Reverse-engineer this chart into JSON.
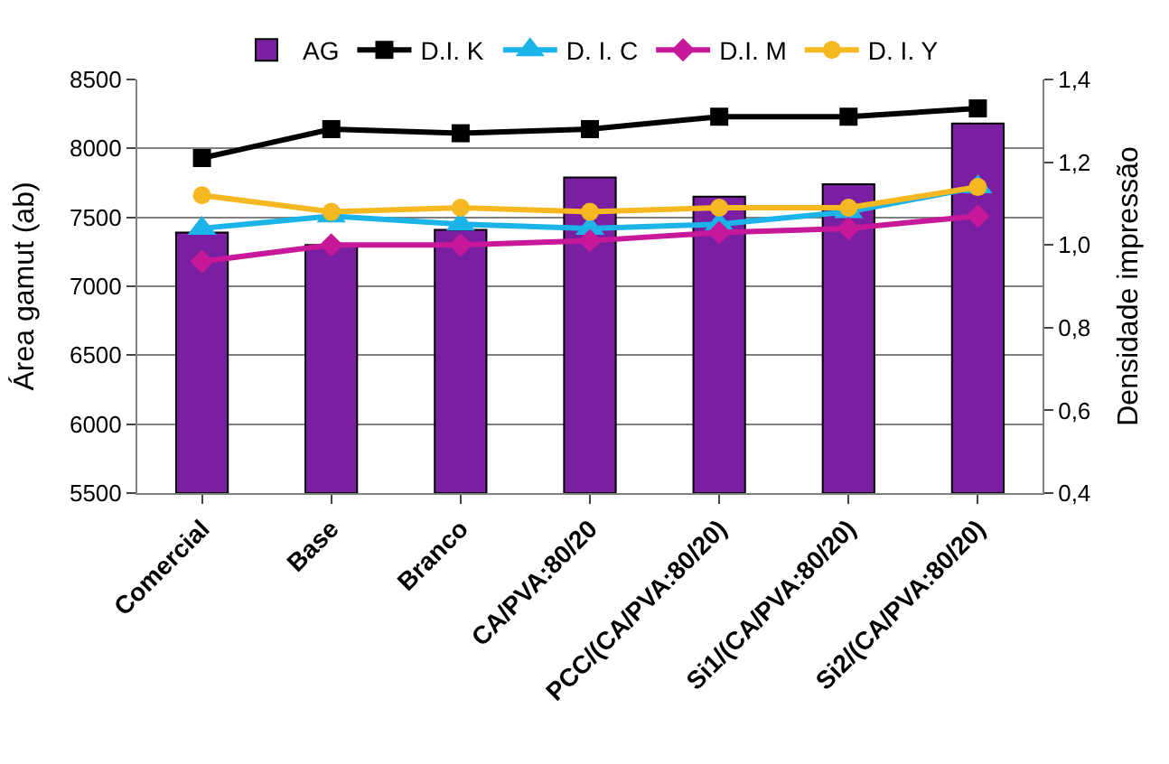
{
  "chart_data": {
    "type": "bar",
    "ylabel": "Área gamut (ab)",
    "y2label": "Densidade impressão",
    "categories": [
      "Comercial",
      "Base",
      "Branco",
      "CA/PVA:80/20",
      "PCC/(CA/PVA:80/20)",
      "Si1/(CA/PVA:80/20)",
      "Si2/(CA/PVA:80/20)"
    ],
    "series": [
      {
        "name": "AG",
        "color": "#7a1fa2",
        "values": [
          7390,
          7300,
          7410,
          7790,
          7650,
          7740,
          8180
        ]
      },
      {
        "name": "D.I. K",
        "type": "line",
        "axis": "y2",
        "color": "#000000",
        "marker": "square",
        "values": [
          1.21,
          1.28,
          1.27,
          1.28,
          1.31,
          1.31,
          1.33
        ]
      },
      {
        "name": "D. I. C",
        "type": "line",
        "axis": "y2",
        "color": "#1cb4e8",
        "marker": "triangle",
        "values": [
          1.04,
          1.07,
          1.05,
          1.04,
          1.05,
          1.08,
          1.14
        ]
      },
      {
        "name": "D.I. M",
        "type": "line",
        "axis": "y2",
        "color": "#c8189a",
        "marker": "diamond",
        "values": [
          0.96,
          1.0,
          1.0,
          1.01,
          1.03,
          1.04,
          1.07
        ]
      },
      {
        "name": "D. I. Y",
        "type": "line",
        "axis": "y2",
        "color": "#f5b820",
        "marker": "circle",
        "values": [
          1.12,
          1.08,
          1.09,
          1.08,
          1.09,
          1.09,
          1.14
        ]
      }
    ],
    "ylim": [
      5500,
      8500
    ],
    "yticks": [
      5500,
      6000,
      6500,
      7000,
      7500,
      8000,
      8500
    ],
    "y2lim": [
      0.4,
      1.4
    ],
    "y2ticks": [
      {
        "value": 0.4,
        "label": "0,4"
      },
      {
        "value": 0.6,
        "label": "0,6"
      },
      {
        "value": 0.8,
        "label": "0,8"
      },
      {
        "value": 1.0,
        "label": "1,0"
      },
      {
        "value": 1.2,
        "label": "1,2"
      },
      {
        "value": 1.4,
        "label": "1,4"
      }
    ],
    "grid": "y",
    "legend": "top"
  }
}
